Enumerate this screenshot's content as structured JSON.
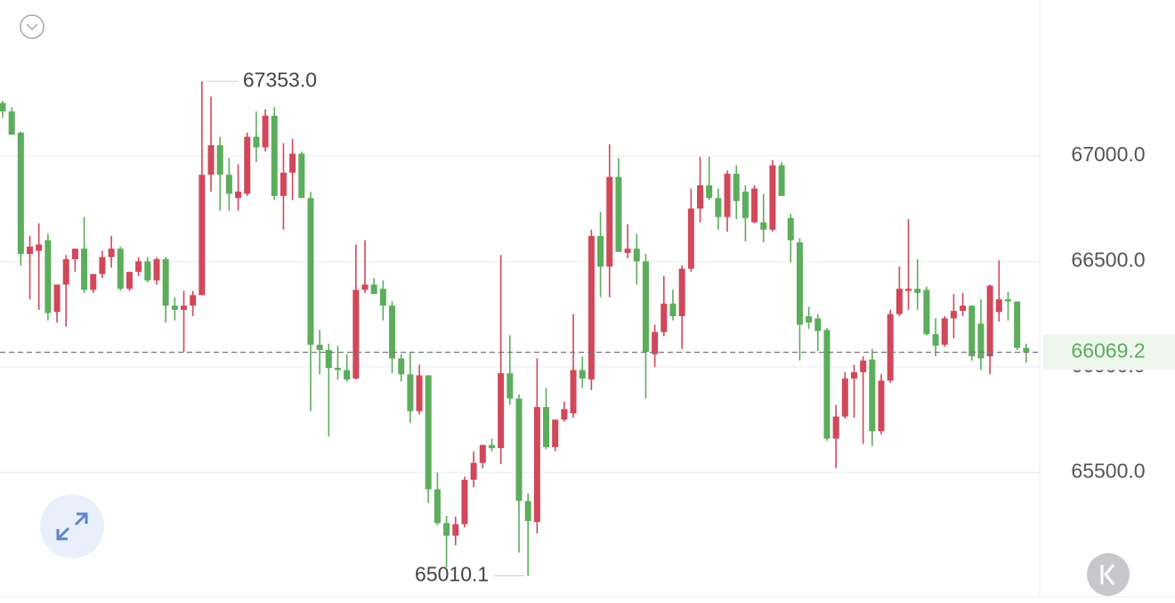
{
  "chart_data": {
    "type": "candlestick",
    "open": [
      67250,
      67210,
      67110,
      66535,
      66550,
      66600,
      66260,
      66390,
      66510,
      66560,
      66365,
      66440,
      66520,
      66560,
      66370,
      66450,
      66500,
      66410,
      66510,
      66290,
      66270,
      66290,
      66340,
      66910,
      67050,
      66910,
      66800,
      66820,
      67090,
      67040,
      67190,
      66810,
      66920,
      67010,
      66800,
      66105,
      66080,
      65995,
      65985,
      65945,
      66365,
      66390,
      66370,
      66290,
      66040,
      65965,
      65790,
      65960,
      65420,
      65260,
      65200,
      65255,
      65465,
      65545,
      65630,
      65615,
      65970,
      65850,
      65365,
      65265,
      65810,
      65620,
      65750,
      65780,
      65985,
      65940,
      66620,
      66475,
      66900,
      66540,
      66560,
      66500,
      66060,
      66165,
      66300,
      66240,
      66465,
      66750,
      66860,
      66800,
      66710,
      66915,
      66830,
      66685,
      66685,
      66650,
      66955,
      66705,
      66590,
      66240,
      66230,
      66175,
      65660,
      65765,
      65945,
      65975,
      66035,
      65695,
      65935,
      66250,
      66360,
      66370,
      66365,
      66155,
      66105,
      66230,
      66265,
      66290,
      66205,
      66050,
      66260,
      66320,
      66310,
      66090
    ],
    "high": [
      67260,
      67230,
      67115,
      66620,
      66680,
      66630,
      66390,
      66530,
      66560,
      66710,
      66440,
      66550,
      66620,
      66570,
      66450,
      66520,
      66520,
      66520,
      66520,
      66330,
      66360,
      66360,
      67353,
      67280,
      67090,
      66990,
      66960,
      67110,
      67210,
      67220,
      67230,
      67060,
      67080,
      67020,
      66830,
      66175,
      66110,
      66100,
      66060,
      66580,
      66600,
      66420,
      66410,
      66310,
      66060,
      66070,
      66010,
      65960,
      65500,
      65295,
      65290,
      65480,
      65600,
      65630,
      65660,
      66530,
      66150,
      65870,
      65400,
      66040,
      65900,
      65750,
      65835,
      66250,
      66050,
      66650,
      66735,
      67055,
      66990,
      66675,
      66630,
      66535,
      66200,
      66430,
      66365,
      66480,
      66845,
      66995,
      66995,
      66845,
      66930,
      66955,
      66860,
      66860,
      66820,
      66980,
      66970,
      66725,
      66610,
      66285,
      66250,
      66185,
      65820,
      65975,
      66010,
      66050,
      66085,
      65965,
      66270,
      66475,
      66700,
      66510,
      66380,
      66230,
      66240,
      66345,
      66350,
      66290,
      66320,
      66390,
      66505,
      66355,
      66310,
      66110
    ],
    "low": [
      67180,
      67100,
      66480,
      66320,
      66270,
      66220,
      66210,
      66190,
      66450,
      66350,
      66350,
      66420,
      66470,
      66360,
      66360,
      66430,
      66400,
      66390,
      66210,
      66220,
      66070,
      66240,
      66340,
      66830,
      66740,
      66740,
      66740,
      66810,
      66970,
      67020,
      66790,
      66650,
      66790,
      66800,
      65790,
      65965,
      65670,
      65940,
      65930,
      65940,
      66350,
      66345,
      66220,
      65970,
      65930,
      65735,
      65775,
      65355,
      65250,
      65050,
      65155,
      65240,
      65430,
      65520,
      65600,
      65540,
      65820,
      65120,
      65010.1,
      65210,
      65610,
      65600,
      65740,
      65760,
      65900,
      65890,
      66330,
      66330,
      66545,
      66515,
      66390,
      65850,
      66000,
      66145,
      66220,
      66085,
      66450,
      66685,
      66790,
      66650,
      66640,
      66700,
      66595,
      66680,
      66590,
      66640,
      66810,
      66495,
      66030,
      66180,
      66075,
      65650,
      65520,
      65755,
      65760,
      65635,
      65625,
      65680,
      65925,
      66240,
      66270,
      66270,
      66150,
      66050,
      66095,
      66135,
      66240,
      66030,
      65985,
      65965,
      66215,
      66220,
      66080,
      66020
    ],
    "close": [
      67210,
      67100,
      66535,
      66570,
      66580,
      66255,
      66390,
      66510,
      66560,
      66365,
      66440,
      66520,
      66560,
      66370,
      66450,
      66500,
      66410,
      66510,
      66290,
      66270,
      66290,
      66340,
      66910,
      67050,
      66910,
      66820,
      66830,
      67090,
      67040,
      67190,
      66810,
      66920,
      67010,
      66800,
      66105,
      66080,
      65995,
      65985,
      65940,
      66365,
      66390,
      66345,
      66290,
      66040,
      65965,
      65790,
      65960,
      65420,
      65260,
      65200,
      65255,
      65465,
      65545,
      65630,
      65615,
      65970,
      65850,
      65365,
      65270,
      65810,
      65620,
      65750,
      65800,
      65985,
      65945,
      66620,
      66475,
      66900,
      66545,
      66560,
      66500,
      66070,
      66165,
      66300,
      66240,
      66465,
      66750,
      66860,
      66800,
      66710,
      66915,
      66785,
      66705,
      66845,
      66650,
      66955,
      66810,
      66600,
      66200,
      66210,
      66170,
      65660,
      65765,
      65945,
      65975,
      66030,
      65695,
      65935,
      66250,
      66370,
      66370,
      66350,
      66155,
      66100,
      66230,
      66265,
      66290,
      66050,
      66040,
      66385,
      66320,
      66310,
      66090,
      66069.2
    ],
    "up_color": "#d0485a",
    "down_color": "#5cad5c",
    "ylim": [
      64911,
      67738
    ],
    "yticks": [
      {
        "value": 65500,
        "label": "65500.0"
      },
      {
        "value": 66000,
        "label": "66000.0"
      },
      {
        "value": 66500,
        "label": "66500.0"
      },
      {
        "value": 67000,
        "label": "67000.0"
      }
    ],
    "grid": true,
    "max_label": {
      "value": 67353,
      "label": "67353.0"
    },
    "min_label": {
      "value": 65010.1,
      "label": "65010.1"
    },
    "last_price": 66069.2
  }
}
